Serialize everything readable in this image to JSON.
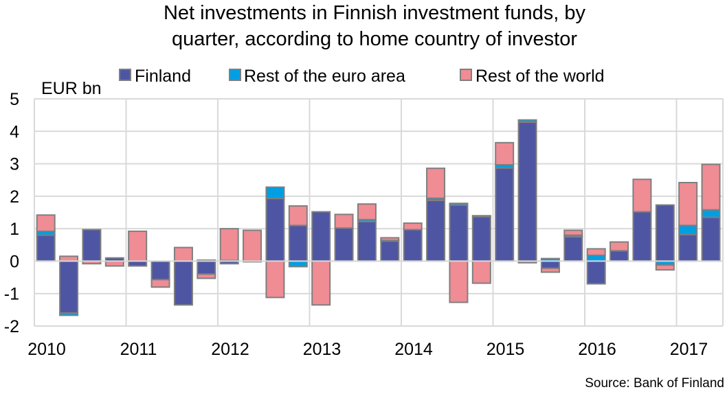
{
  "chart_data": {
    "type": "bar",
    "stacked": true,
    "title_lines": [
      "Net investments in Finnish investment funds, by",
      "quarter, according to home country of investor"
    ],
    "ylabel": "EUR bn",
    "xlabel": "",
    "ylim": [
      -2,
      5
    ],
    "yticks": [
      "5",
      "4",
      "3",
      "2",
      "1",
      "0",
      "-1",
      "-2"
    ],
    "ytick_values": [
      5,
      4,
      3,
      2,
      1,
      0,
      -1,
      -2
    ],
    "year_labels": [
      "2010",
      "2011",
      "2012",
      "2013",
      "2014",
      "2015",
      "2016",
      "2017"
    ],
    "categories": [
      "2010Q1",
      "2010Q2",
      "2010Q3",
      "2010Q4",
      "2011Q1",
      "2011Q2",
      "2011Q3",
      "2011Q4",
      "2012Q1",
      "2012Q2",
      "2012Q3",
      "2012Q4",
      "2013Q1",
      "2013Q2",
      "2013Q3",
      "2013Q4",
      "2014Q1",
      "2014Q2",
      "2014Q3",
      "2014Q4",
      "2015Q1",
      "2015Q2",
      "2015Q3",
      "2015Q4",
      "2016Q1",
      "2016Q2",
      "2016Q3",
      "2016Q4",
      "2017Q1",
      "2017Q2"
    ],
    "grid": true,
    "legend_position": "top",
    "series": [
      {
        "name": "Finland",
        "color": "#4e56a4",
        "values": [
          0.8,
          -1.6,
          0.97,
          0.1,
          -0.15,
          -0.57,
          -1.35,
          -0.4,
          -0.08,
          -0.02,
          1.93,
          1.1,
          1.52,
          1.02,
          1.22,
          0.62,
          0.97,
          1.87,
          1.73,
          1.37,
          2.87,
          4.28,
          -0.22,
          0.75,
          -0.7,
          0.32,
          1.52,
          1.73,
          0.82,
          1.35
        ]
      },
      {
        "name": "Rest of the euro area",
        "color": "#009fe3",
        "values": [
          0.12,
          -0.07,
          0,
          0,
          0,
          0,
          0,
          0.03,
          0.02,
          0,
          0.35,
          -0.17,
          0,
          0,
          0.06,
          0.02,
          0,
          0.07,
          0.05,
          0.03,
          0.1,
          0.07,
          0.08,
          0.05,
          0.18,
          0,
          0,
          -0.12,
          0.28,
          0.23
        ]
      },
      {
        "name": "Rest of the world",
        "color": "#f08c94",
        "values": [
          0.5,
          0.15,
          -0.08,
          -0.15,
          0.92,
          -0.23,
          0.42,
          -0.13,
          0.98,
          0.95,
          -1.12,
          0.6,
          -1.35,
          0.42,
          0.48,
          0.08,
          0.2,
          0.92,
          -1.27,
          -0.68,
          0.68,
          -0.05,
          -0.12,
          0.15,
          0.2,
          0.27,
          1.0,
          -0.15,
          1.32,
          1.4
        ]
      }
    ],
    "source": "Source: Bank of Finland"
  }
}
